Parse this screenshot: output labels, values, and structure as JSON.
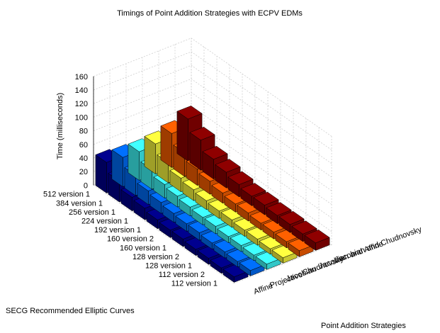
{
  "chart_data": {
    "type": "bar",
    "subtype": "3d-bar",
    "title": "Timings of Point Addition Strategies with ECPV EDMs",
    "zlabel": "Time (milliseconds)",
    "xlabel": "SECG Recommended Elliptic Curves",
    "ylabel": "Point Addition Strategies",
    "zlim": [
      0,
      160
    ],
    "zticks": [
      0,
      20,
      40,
      60,
      80,
      100,
      120,
      140,
      160
    ],
    "grid": true,
    "curves": [
      "112 version 1",
      "112 version 2",
      "128 version 1",
      "128 version 2",
      "160 version 1",
      "160 version 2",
      "192 version 1",
      "224 version 1",
      "256 version 1",
      "384 version 1",
      "512 version 1"
    ],
    "strategies": [
      "Affine",
      "Projective",
      "Jacobian",
      "Chudnovsky",
      "Jacobian and Affine",
      "Jacobian and Chudnovsky"
    ],
    "colors": [
      "#00008f",
      "#0070ff",
      "#40ffff",
      "#ffff40",
      "#ff6000",
      "#8f0000"
    ],
    "series": [
      {
        "name": "Affine",
        "values": [
          8,
          8,
          9,
          9,
          11,
          11,
          13,
          17,
          20,
          31,
          45
        ]
      },
      {
        "name": "Projective",
        "values": [
          8,
          8,
          9,
          9,
          11,
          11,
          13,
          16,
          20,
          30,
          43
        ]
      },
      {
        "name": "Jacobian",
        "values": [
          8,
          8,
          9,
          9,
          11,
          11,
          13,
          16,
          20,
          29,
          42
        ]
      },
      {
        "name": "Chudnovsky",
        "values": [
          8,
          8,
          9,
          9,
          11,
          11,
          13,
          16,
          20,
          30,
          44
        ]
      },
      {
        "name": "Jacobian and Affine",
        "values": [
          9,
          9,
          10,
          10,
          12,
          12,
          15,
          19,
          24,
          35,
          50
        ]
      },
      {
        "name": "Jacobian and Chudnovsky",
        "values": [
          11,
          11,
          12,
          12,
          14,
          14,
          18,
          23,
          29,
          44,
          62
        ]
      }
    ]
  }
}
